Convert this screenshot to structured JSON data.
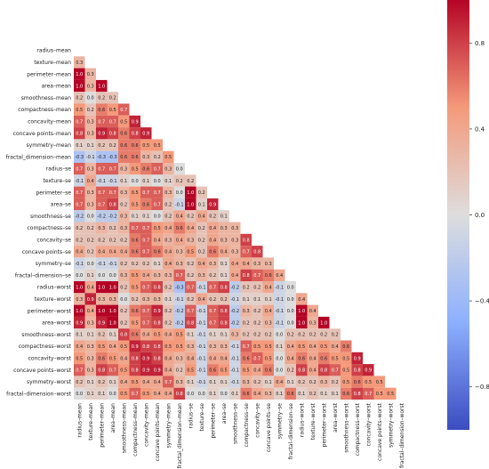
{
  "chart_data": {
    "type": "heatmap",
    "title": "",
    "xlabel": "",
    "ylabel": "",
    "variables": [
      "radius–mean",
      "texture–mean",
      "perimeter–mean",
      "area–mean",
      "smoothness–mean",
      "compactness–mean",
      "concavity–mean",
      "concave points–mean",
      "symmetry–mean",
      "fractal_dimension–mean",
      "radius–se",
      "texture–se",
      "perimeter–se",
      "area–se",
      "smoothness–se",
      "compactness–se",
      "concavity–se",
      "concave points–se",
      "symmetry–se",
      "fractal–dimension–se",
      "radius–worst",
      "texture–worst",
      "perimeter–worst",
      "area–worst",
      "smoothness–worst",
      "compactness–worst",
      "concavity–worst",
      "concave points–worst",
      "symmetry–worst",
      "fractal–dimension–worst"
    ],
    "mask": "upper-triangle",
    "lower_triangle_values": [
      [],
      [
        0.3
      ],
      [
        1.0,
        0.3
      ],
      [
        1.0,
        0.3,
        1.0
      ],
      [
        0.2,
        -0.0,
        0.2,
        0.2
      ],
      [
        0.5,
        0.2,
        0.6,
        0.5,
        0.7
      ],
      [
        0.7,
        0.3,
        0.7,
        0.7,
        0.5,
        0.9
      ],
      [
        0.8,
        0.3,
        0.9,
        0.8,
        0.6,
        0.8,
        0.9
      ],
      [
        0.1,
        0.1,
        0.2,
        0.2,
        0.6,
        0.6,
        0.5,
        0.5
      ],
      [
        -0.3,
        -0.1,
        -0.3,
        -0.3,
        0.6,
        0.6,
        0.3,
        0.2,
        0.5
      ],
      [
        0.7,
        0.3,
        0.7,
        0.7,
        0.3,
        0.5,
        0.6,
        0.7,
        0.3,
        0.0
      ],
      [
        -0.1,
        0.4,
        -0.1,
        -0.1,
        0.1,
        0.0,
        0.1,
        0.0,
        0.1,
        0.2,
        0.2
      ],
      [
        0.7,
        0.3,
        0.7,
        0.7,
        0.3,
        0.5,
        0.7,
        0.7,
        0.3,
        0.0,
        1.0,
        0.2
      ],
      [
        0.7,
        0.3,
        0.7,
        0.8,
        0.2,
        0.5,
        0.6,
        0.7,
        0.2,
        -0.1,
        1.0,
        0.1,
        0.9
      ],
      [
        -0.2,
        0.0,
        -0.2,
        -0.2,
        0.3,
        0.1,
        0.1,
        0.0,
        0.2,
        0.4,
        0.2,
        0.4,
        0.2,
        0.1
      ],
      [
        0.2,
        0.2,
        0.3,
        0.2,
        0.3,
        0.7,
        0.7,
        0.5,
        0.4,
        0.6,
        0.4,
        0.2,
        0.4,
        0.3,
        0.3
      ],
      [
        0.2,
        0.2,
        0.2,
        0.2,
        0.2,
        0.6,
        0.7,
        0.4,
        0.3,
        0.4,
        0.3,
        0.2,
        0.4,
        0.3,
        0.3,
        0.8
      ],
      [
        0.4,
        0.2,
        0.4,
        0.4,
        0.4,
        0.6,
        0.7,
        0.6,
        0.4,
        0.3,
        0.5,
        0.2,
        0.6,
        0.4,
        0.3,
        0.7,
        0.8
      ],
      [
        -0.1,
        0.0,
        -0.1,
        -0.1,
        0.2,
        0.2,
        0.2,
        0.1,
        0.4,
        0.3,
        0.2,
        0.4,
        0.3,
        0.1,
        0.4,
        0.4,
        0.3,
        0.3
      ],
      [
        -0.0,
        0.1,
        -0.0,
        -0.0,
        0.3,
        0.5,
        0.4,
        0.3,
        0.3,
        0.7,
        0.2,
        0.3,
        0.2,
        0.1,
        0.4,
        0.8,
        0.7,
        0.6,
        0.4
      ],
      [
        1.0,
        0.4,
        1.0,
        1.0,
        0.2,
        0.5,
        0.7,
        0.8,
        0.2,
        -0.3,
        0.7,
        -0.1,
        0.7,
        0.8,
        -0.2,
        0.2,
        0.2,
        0.4,
        -0.1,
        -0.0
      ],
      [
        0.3,
        0.9,
        0.3,
        0.3,
        0.0,
        0.2,
        0.3,
        0.3,
        0.1,
        -0.1,
        0.2,
        0.4,
        0.2,
        0.2,
        -0.1,
        0.1,
        0.1,
        0.1,
        -0.1,
        0.0,
        0.4
      ],
      [
        1.0,
        0.4,
        1.0,
        1.0,
        0.2,
        0.6,
        0.7,
        0.9,
        0.2,
        -0.2,
        0.7,
        -0.1,
        0.7,
        0.8,
        -0.2,
        0.3,
        0.2,
        0.4,
        -0.1,
        -0.0,
        1.0,
        0.4
      ],
      [
        0.9,
        0.3,
        0.9,
        1.0,
        0.2,
        0.5,
        0.7,
        0.8,
        0.2,
        -0.2,
        0.8,
        -0.1,
        0.7,
        0.8,
        -0.2,
        0.2,
        0.2,
        0.3,
        -0.1,
        -0.0,
        1.0,
        0.3,
        1.0
      ],
      [
        0.1,
        0.1,
        0.2,
        0.1,
        0.8,
        0.6,
        0.4,
        0.5,
        0.4,
        0.5,
        0.1,
        -0.1,
        0.1,
        0.1,
        0.3,
        0.2,
        0.2,
        0.2,
        -0.0,
        0.2,
        0.2,
        0.2,
        0.2,
        0.2
      ],
      [
        0.4,
        0.3,
        0.5,
        0.4,
        0.5,
        0.9,
        0.8,
        0.8,
        0.5,
        0.5,
        0.3,
        -0.1,
        0.3,
        0.3,
        -0.1,
        0.7,
        0.5,
        0.5,
        0.1,
        0.4,
        0.5,
        0.4,
        0.5,
        0.4,
        0.6
      ],
      [
        0.5,
        0.3,
        0.6,
        0.5,
        0.4,
        0.8,
        0.9,
        0.8,
        0.4,
        0.3,
        0.4,
        -0.1,
        0.4,
        0.4,
        -0.1,
        0.6,
        0.7,
        0.5,
        0.0,
        0.4,
        0.6,
        0.4,
        0.6,
        0.5,
        0.5,
        0.9
      ],
      [
        0.7,
        0.3,
        0.8,
        0.7,
        0.5,
        0.8,
        0.9,
        0.9,
        0.4,
        0.2,
        0.5,
        -0.1,
        0.6,
        0.5,
        -0.1,
        0.5,
        0.4,
        0.6,
        -0.0,
        0.2,
        0.8,
        0.4,
        0.8,
        0.7,
        0.5,
        0.8,
        0.9
      ],
      [
        0.2,
        0.1,
        0.2,
        0.1,
        0.4,
        0.5,
        0.4,
        0.4,
        0.7,
        0.3,
        0.1,
        -0.1,
        0.1,
        0.1,
        -0.1,
        0.3,
        0.2,
        0.1,
        0.4,
        0.1,
        0.2,
        0.2,
        0.3,
        0.2,
        0.5,
        0.6,
        0.5,
        0.5
      ],
      [
        0.0,
        0.1,
        0.1,
        0.0,
        0.5,
        0.7,
        0.5,
        0.4,
        0.4,
        0.8,
        0.0,
        -0.0,
        0.1,
        0.0,
        0.1,
        0.6,
        0.4,
        0.3,
        0.1,
        0.6,
        0.1,
        0.2,
        0.1,
        0.1,
        0.6,
        0.8,
        0.7,
        0.5,
        0.5
      ]
    ],
    "colormap": "coolwarm",
    "colorbar": {
      "ticks": [
        0.8,
        0.4,
        0.0,
        -0.4,
        -0.8
      ],
      "range": [
        -1.0,
        1.0
      ]
    },
    "annotations": true,
    "annotation_format": "one decimal"
  }
}
